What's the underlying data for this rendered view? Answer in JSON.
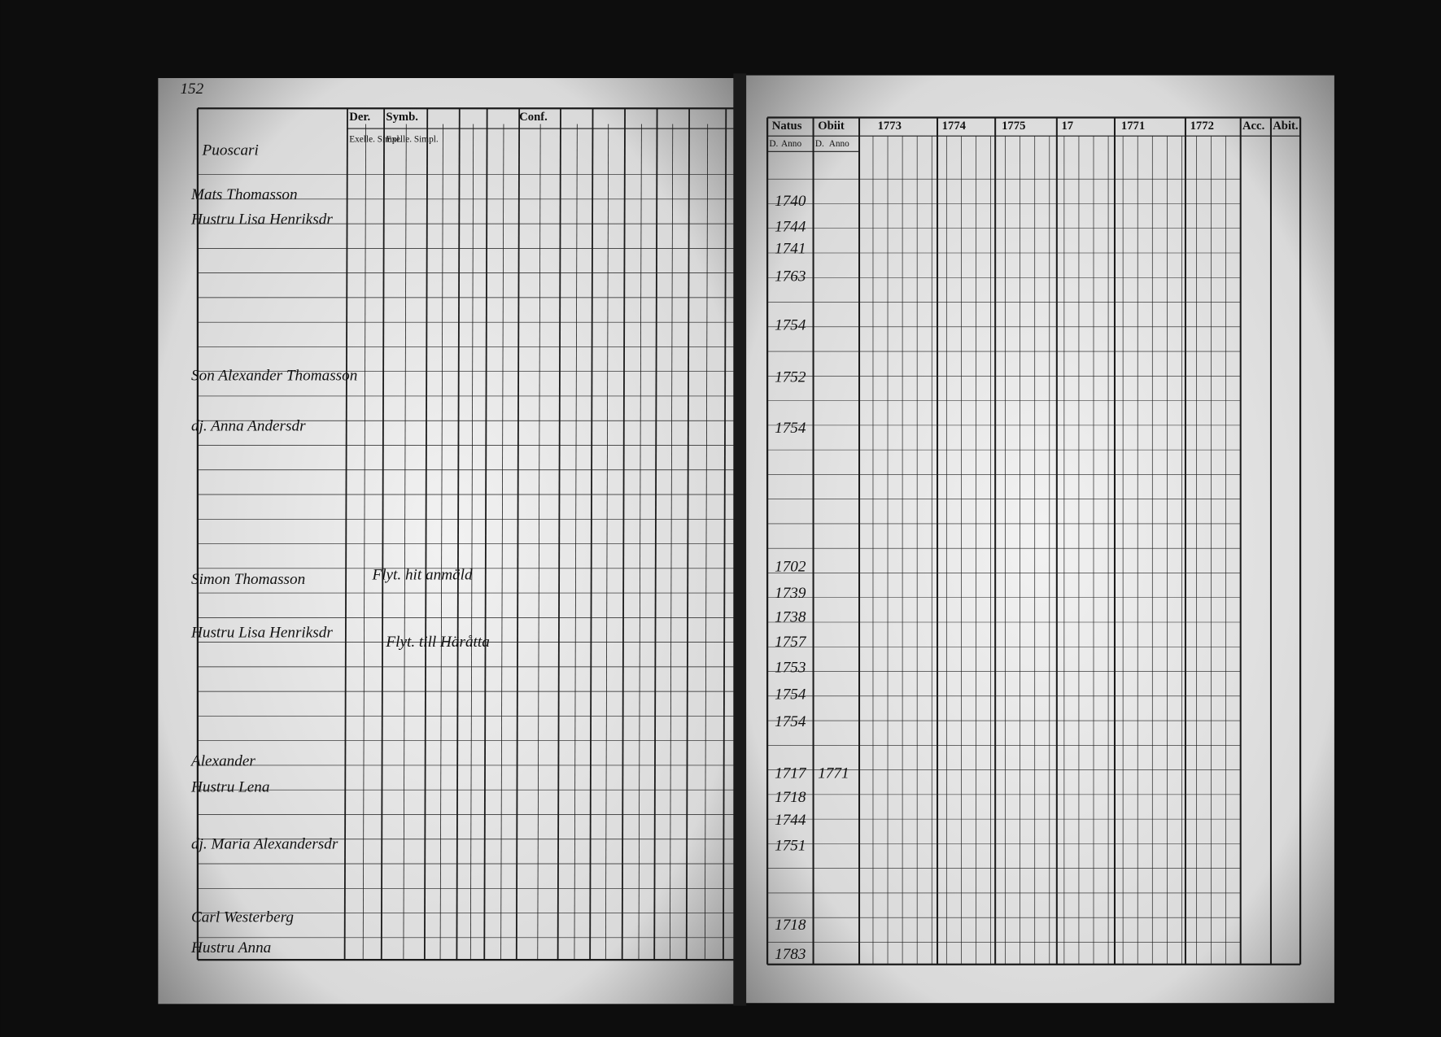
{
  "left_page": {
    "page_number": "152",
    "parish_label": "Puoscari",
    "column_headers": [
      "Der.",
      "Symb.",
      "Conf."
    ],
    "sub_headers": [
      "Exelle. Simpl.",
      "Exelle. Simpl."
    ],
    "entries": [
      "Mats Thomasson",
      "Hustru Lisa Henriksdr",
      "Son Alexander Thomasson",
      "dj. Anna Andersdr",
      "Simon Thomasson",
      "Hustru Lisa Henriksdr",
      "Alexander",
      "Hustru Lena",
      "dj. Maria Alexandersdr",
      "Carl Westerberg",
      "Hustru Anna"
    ],
    "notes": [
      "Flyt. hit anmäld",
      "Flyt. till Häråtta"
    ]
  },
  "right_page": {
    "headers": [
      "Natus",
      "Obiit",
      "Acc.",
      "Abit."
    ],
    "sub_headers": [
      "D.",
      "Anno",
      "D.",
      "Anno"
    ],
    "years": [
      "1773",
      "1774",
      "1775",
      "17",
      "1771",
      "1772"
    ],
    "birth_years": [
      "1740",
      "1744",
      "1741",
      "1763",
      "1754",
      "1752",
      "1754",
      "1702",
      "1739",
      "1738",
      "1757",
      "1753",
      "1754",
      "1754",
      "1717",
      "1718",
      "1744",
      "1751",
      "1718",
      "1783"
    ],
    "death_year": "1771"
  }
}
